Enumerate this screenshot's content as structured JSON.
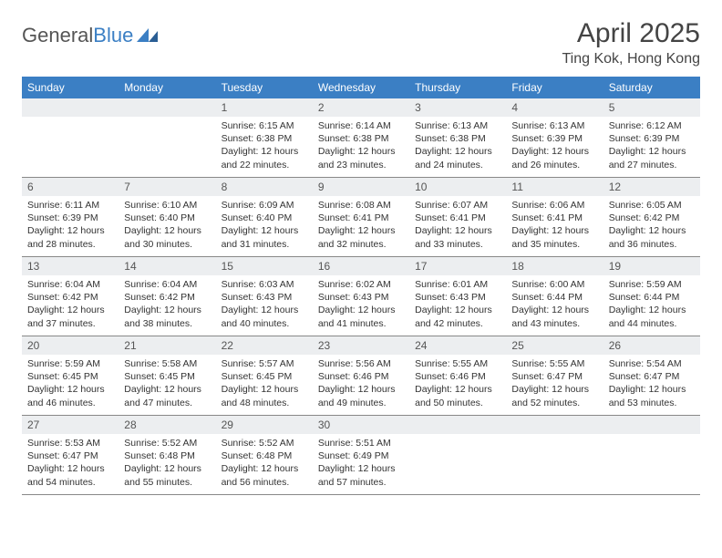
{
  "brand": {
    "part1": "General",
    "part2": "Blue"
  },
  "title": "April 2025",
  "location": "Ting Kok, Hong Kong",
  "colors": {
    "header_bg": "#3b7fc4",
    "header_text": "#ffffff",
    "daynum_bg": "#eceef0",
    "border": "#888888",
    "logo_gray": "#555555",
    "logo_blue": "#3b7fc4"
  },
  "weekdays": [
    "Sunday",
    "Monday",
    "Tuesday",
    "Wednesday",
    "Thursday",
    "Friday",
    "Saturday"
  ],
  "weeks": [
    [
      null,
      null,
      {
        "n": "1",
        "sr": "6:15 AM",
        "ss": "6:38 PM",
        "dl": "12 hours and 22 minutes."
      },
      {
        "n": "2",
        "sr": "6:14 AM",
        "ss": "6:38 PM",
        "dl": "12 hours and 23 minutes."
      },
      {
        "n": "3",
        "sr": "6:13 AM",
        "ss": "6:38 PM",
        "dl": "12 hours and 24 minutes."
      },
      {
        "n": "4",
        "sr": "6:13 AM",
        "ss": "6:39 PM",
        "dl": "12 hours and 26 minutes."
      },
      {
        "n": "5",
        "sr": "6:12 AM",
        "ss": "6:39 PM",
        "dl": "12 hours and 27 minutes."
      }
    ],
    [
      {
        "n": "6",
        "sr": "6:11 AM",
        "ss": "6:39 PM",
        "dl": "12 hours and 28 minutes."
      },
      {
        "n": "7",
        "sr": "6:10 AM",
        "ss": "6:40 PM",
        "dl": "12 hours and 30 minutes."
      },
      {
        "n": "8",
        "sr": "6:09 AM",
        "ss": "6:40 PM",
        "dl": "12 hours and 31 minutes."
      },
      {
        "n": "9",
        "sr": "6:08 AM",
        "ss": "6:41 PM",
        "dl": "12 hours and 32 minutes."
      },
      {
        "n": "10",
        "sr": "6:07 AM",
        "ss": "6:41 PM",
        "dl": "12 hours and 33 minutes."
      },
      {
        "n": "11",
        "sr": "6:06 AM",
        "ss": "6:41 PM",
        "dl": "12 hours and 35 minutes."
      },
      {
        "n": "12",
        "sr": "6:05 AM",
        "ss": "6:42 PM",
        "dl": "12 hours and 36 minutes."
      }
    ],
    [
      {
        "n": "13",
        "sr": "6:04 AM",
        "ss": "6:42 PM",
        "dl": "12 hours and 37 minutes."
      },
      {
        "n": "14",
        "sr": "6:04 AM",
        "ss": "6:42 PM",
        "dl": "12 hours and 38 minutes."
      },
      {
        "n": "15",
        "sr": "6:03 AM",
        "ss": "6:43 PM",
        "dl": "12 hours and 40 minutes."
      },
      {
        "n": "16",
        "sr": "6:02 AM",
        "ss": "6:43 PM",
        "dl": "12 hours and 41 minutes."
      },
      {
        "n": "17",
        "sr": "6:01 AM",
        "ss": "6:43 PM",
        "dl": "12 hours and 42 minutes."
      },
      {
        "n": "18",
        "sr": "6:00 AM",
        "ss": "6:44 PM",
        "dl": "12 hours and 43 minutes."
      },
      {
        "n": "19",
        "sr": "5:59 AM",
        "ss": "6:44 PM",
        "dl": "12 hours and 44 minutes."
      }
    ],
    [
      {
        "n": "20",
        "sr": "5:59 AM",
        "ss": "6:45 PM",
        "dl": "12 hours and 46 minutes."
      },
      {
        "n": "21",
        "sr": "5:58 AM",
        "ss": "6:45 PM",
        "dl": "12 hours and 47 minutes."
      },
      {
        "n": "22",
        "sr": "5:57 AM",
        "ss": "6:45 PM",
        "dl": "12 hours and 48 minutes."
      },
      {
        "n": "23",
        "sr": "5:56 AM",
        "ss": "6:46 PM",
        "dl": "12 hours and 49 minutes."
      },
      {
        "n": "24",
        "sr": "5:55 AM",
        "ss": "6:46 PM",
        "dl": "12 hours and 50 minutes."
      },
      {
        "n": "25",
        "sr": "5:55 AM",
        "ss": "6:47 PM",
        "dl": "12 hours and 52 minutes."
      },
      {
        "n": "26",
        "sr": "5:54 AM",
        "ss": "6:47 PM",
        "dl": "12 hours and 53 minutes."
      }
    ],
    [
      {
        "n": "27",
        "sr": "5:53 AM",
        "ss": "6:47 PM",
        "dl": "12 hours and 54 minutes."
      },
      {
        "n": "28",
        "sr": "5:52 AM",
        "ss": "6:48 PM",
        "dl": "12 hours and 55 minutes."
      },
      {
        "n": "29",
        "sr": "5:52 AM",
        "ss": "6:48 PM",
        "dl": "12 hours and 56 minutes."
      },
      {
        "n": "30",
        "sr": "5:51 AM",
        "ss": "6:49 PM",
        "dl": "12 hours and 57 minutes."
      },
      null,
      null,
      null
    ]
  ],
  "labels": {
    "sunrise": "Sunrise: ",
    "sunset": "Sunset: ",
    "daylight": "Daylight: "
  }
}
